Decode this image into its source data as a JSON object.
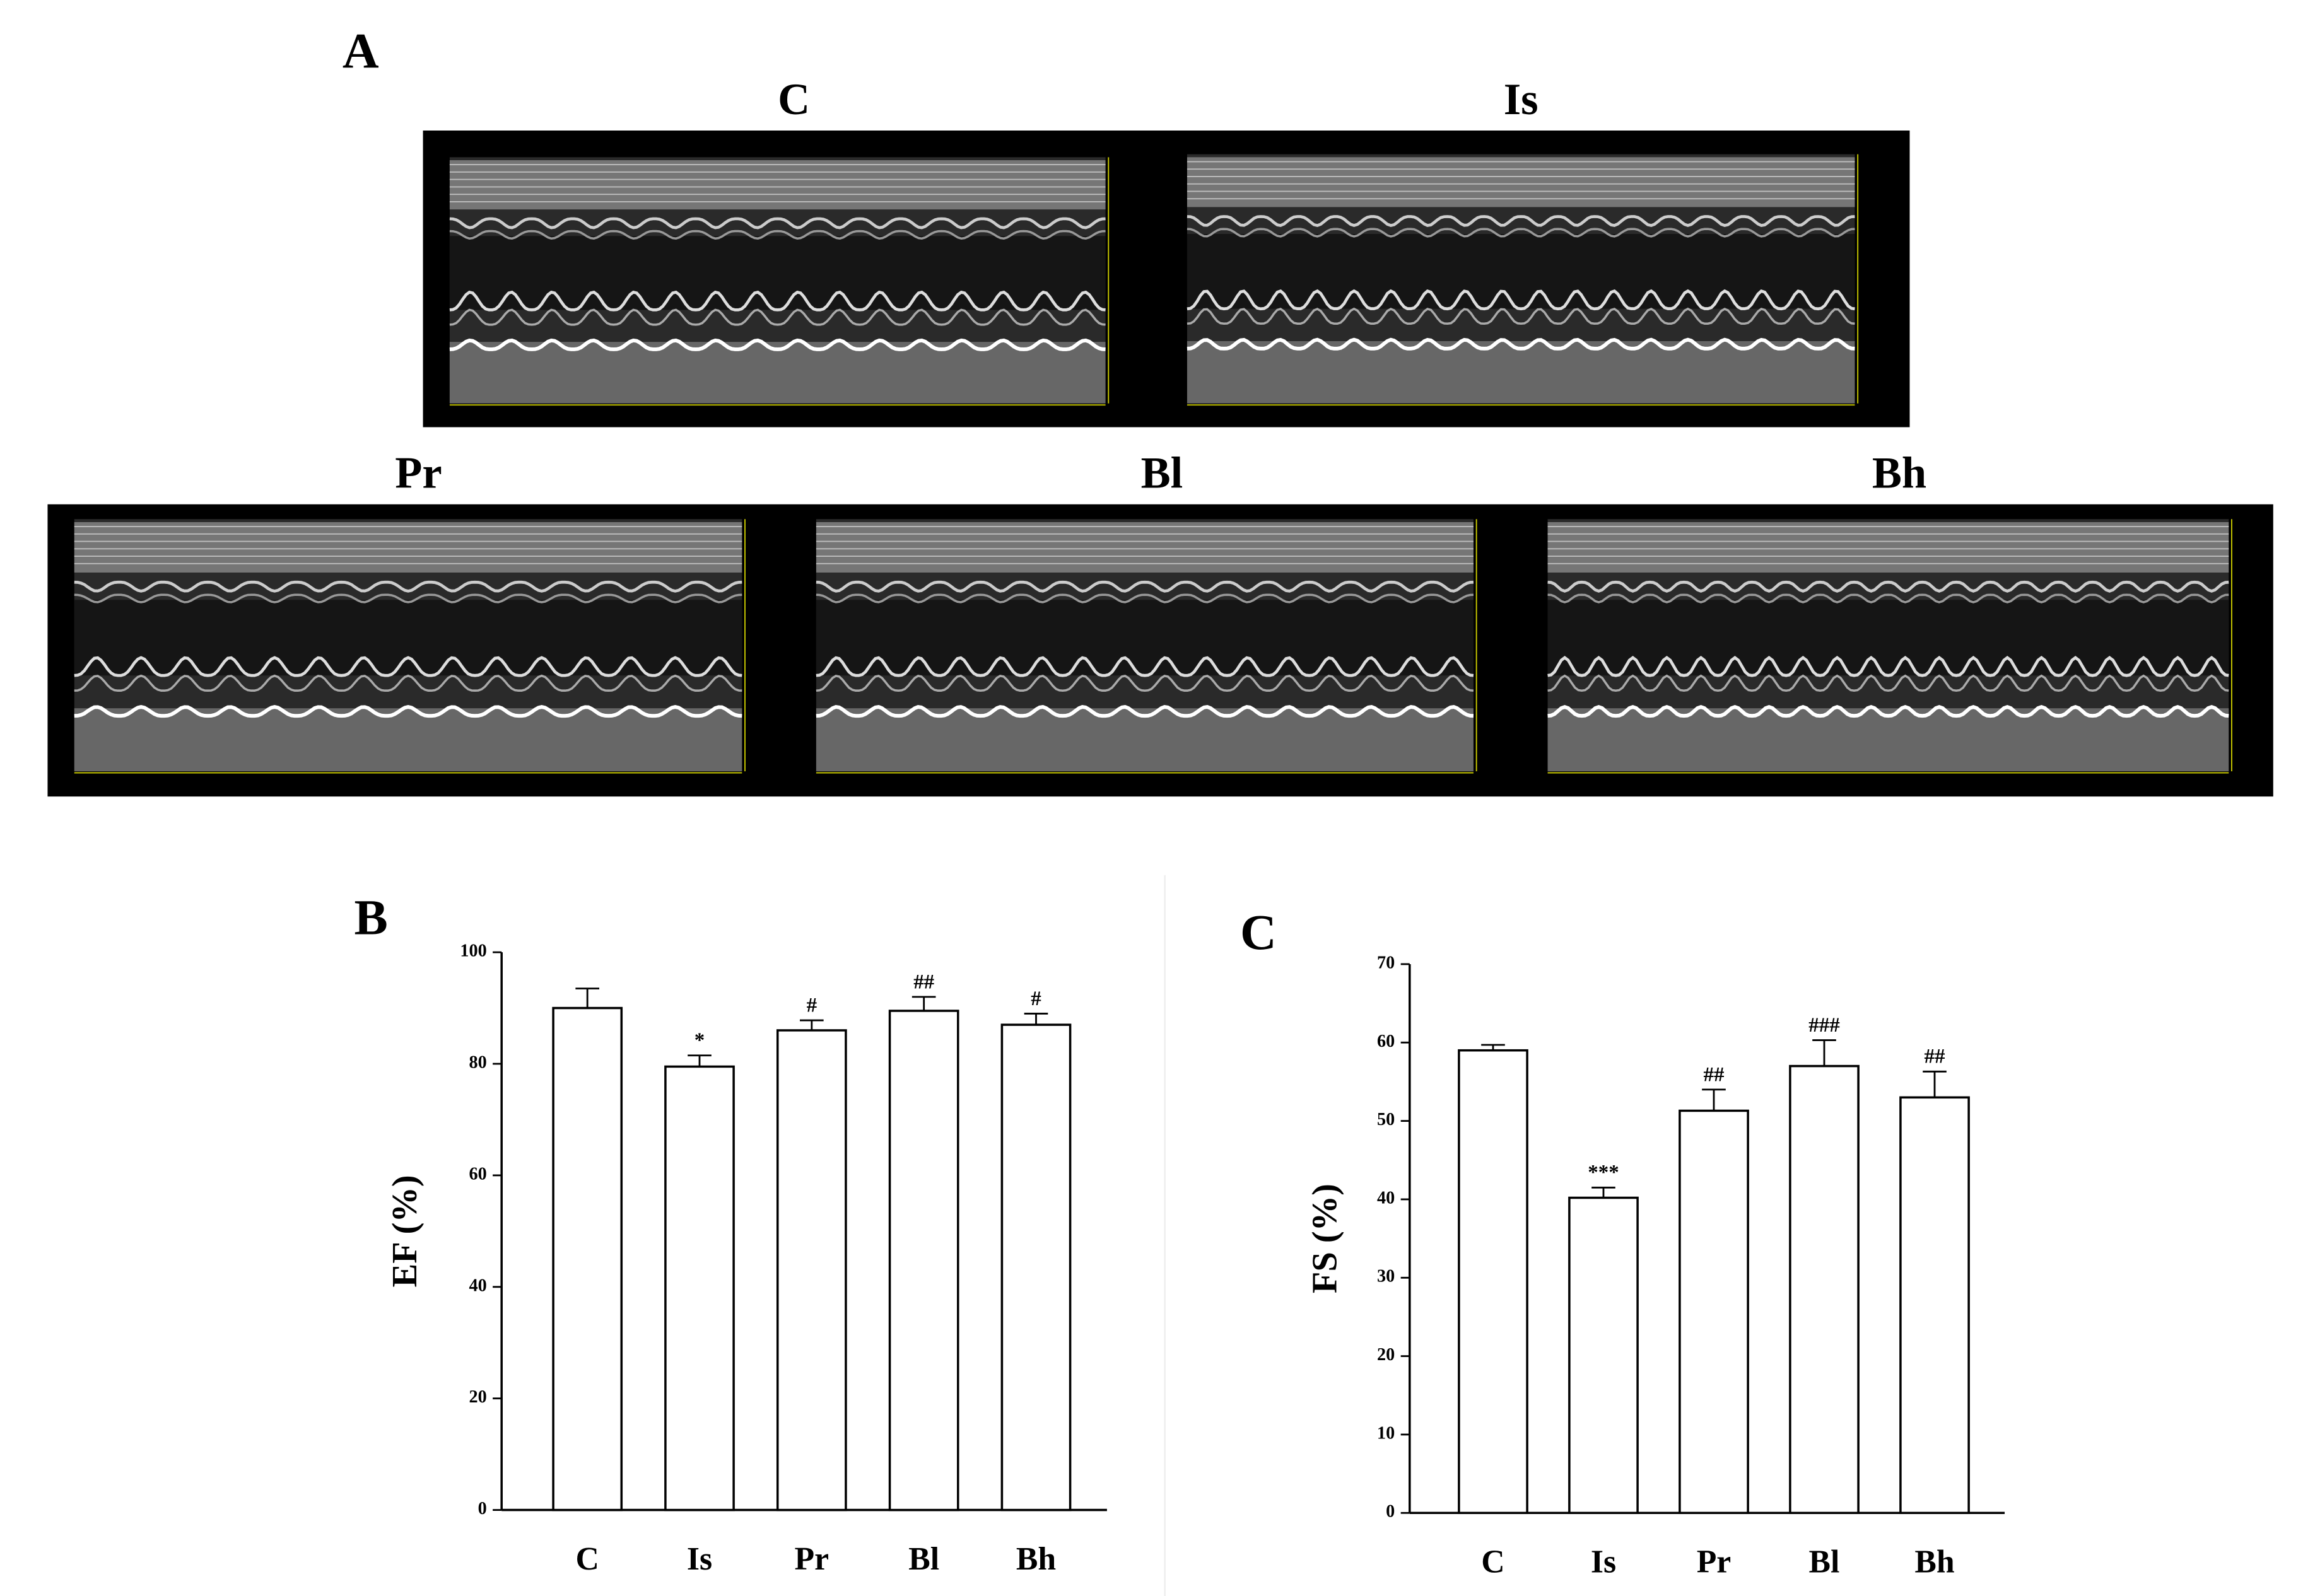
{
  "panel_labels": [
    "A",
    "B",
    "C"
  ],
  "images": [
    {
      "label": "C"
    },
    {
      "label": "Is"
    },
    {
      "label": "Pr"
    },
    {
      "label": "Bl"
    },
    {
      "label": "Bh"
    }
  ],
  "chart_data": [
    {
      "type": "bar",
      "y_label": "EF (%)",
      "categories": [
        "C",
        "Is",
        "Pr",
        "Bl",
        "Bh"
      ],
      "values": [
        90,
        79.5,
        86,
        89.5,
        87
      ],
      "errors": [
        3.5,
        2,
        1.8,
        2.5,
        2
      ],
      "annotations": [
        null,
        "*",
        "#",
        "##",
        "#"
      ],
      "color": "#ffffff",
      "ylim": [
        0,
        100
      ],
      "yticks": [
        0,
        20,
        40,
        60,
        80,
        100
      ]
    },
    {
      "type": "bar",
      "y_label": "FS (%)",
      "categories": [
        "C",
        "Is",
        "Pr",
        "Bl",
        "Bh"
      ],
      "values": [
        59,
        40.2,
        51.3,
        57,
        53
      ],
      "errors": [
        0.7,
        1.3,
        2.7,
        3.3,
        3.3
      ],
      "annotations": [
        null,
        "***",
        "##",
        "###",
        "##"
      ],
      "color": "#ffffff",
      "ylim": [
        0,
        70
      ],
      "yticks": [
        0,
        10,
        20,
        30,
        40,
        50,
        60,
        70
      ]
    }
  ]
}
